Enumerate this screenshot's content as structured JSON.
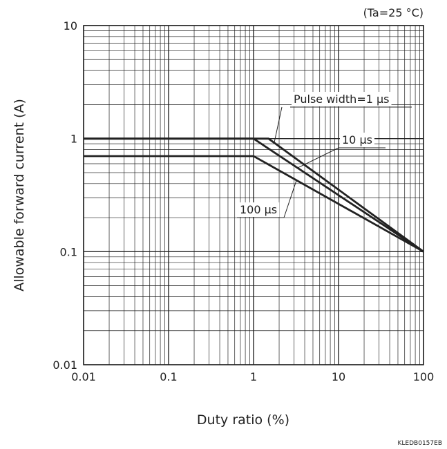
{
  "chart_data": {
    "type": "line",
    "title": "",
    "condition": "(Ta=25 °C)",
    "xlabel": "Duty ratio (%)",
    "ylabel": "Allowable forward current (A)",
    "x_scale": "log",
    "y_scale": "log",
    "xlim": [
      0.01,
      100
    ],
    "ylim": [
      0.01,
      10
    ],
    "x_ticks": [
      0.01,
      0.1,
      1,
      10,
      100
    ],
    "x_tick_labels": [
      "0.01",
      "0.1",
      "1",
      "10",
      "100"
    ],
    "y_ticks": [
      0.01,
      0.1,
      1,
      10
    ],
    "y_tick_labels": [
      "0.01",
      "0.1",
      "1",
      "10"
    ],
    "grid": true,
    "series": [
      {
        "name": "Pulse width=1 µs",
        "x": [
          0.01,
          1.5,
          100
        ],
        "y": [
          1,
          1,
          0.1
        ]
      },
      {
        "name": "10 µs",
        "x": [
          0.01,
          1,
          100
        ],
        "y": [
          1,
          1,
          0.1
        ]
      },
      {
        "name": "100 µs",
        "x": [
          0.01,
          1,
          100
        ],
        "y": [
          0.7,
          0.7,
          0.1
        ]
      }
    ],
    "annotations": [
      {
        "text": "Pulse width=1 µs",
        "series": 0
      },
      {
        "text": "10 µs",
        "series": 1
      },
      {
        "text": "100 µs",
        "series": 2
      }
    ],
    "code": "KLEDB0157EB"
  }
}
